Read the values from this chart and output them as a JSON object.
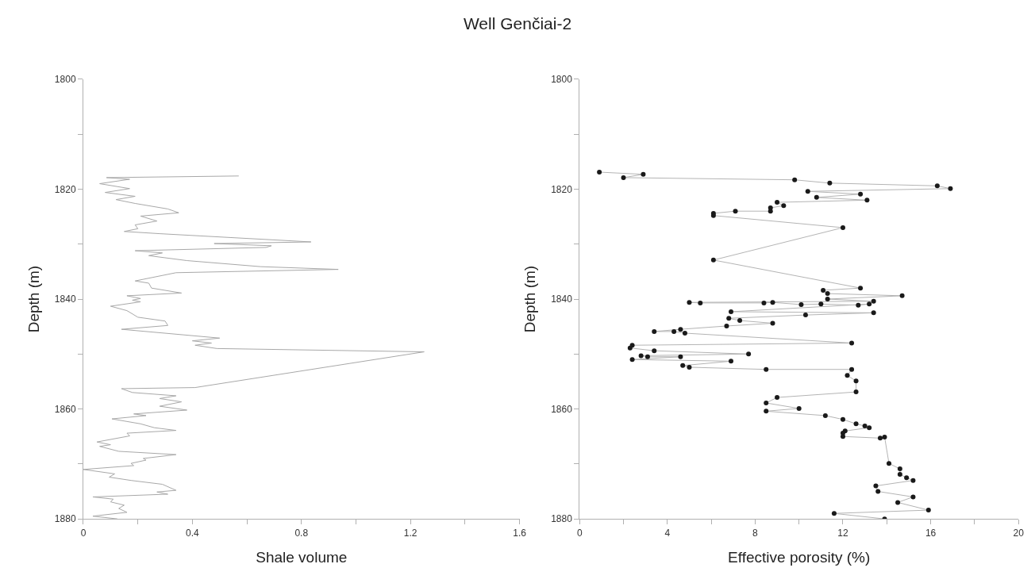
{
  "chart_data": [
    {
      "type": "line",
      "title": "Well Genčiai-2",
      "xlabel": "Shale volume",
      "ylabel": "Depth (m)",
      "marker": "none",
      "line_style": "solid",
      "xlim": [
        0,
        1.6
      ],
      "xticks": [
        0,
        {
          "value": 0.2,
          "label": null
        },
        0.4,
        {
          "value": 0.6,
          "label": null
        },
        0.8,
        {
          "value": 1.0,
          "label": null
        },
        1.2,
        {
          "value": 1.4,
          "label": null
        },
        1.6
      ],
      "ylim": [
        1880,
        1800
      ],
      "yticks": [
        1800,
        {
          "value": 1810,
          "label": null
        },
        1820,
        {
          "value": 1830,
          "label": null
        },
        1840,
        {
          "value": 1850,
          "label": null
        },
        1860,
        {
          "value": 1870,
          "label": null
        },
        1880
      ],
      "series": [
        {
          "color": "#a8a8a8",
          "x": [
            0.57,
            0.085,
            0.17,
            0.06,
            0.17,
            0.08,
            0.19,
            0.12,
            0.19,
            0.31,
            0.35,
            0.21,
            0.27,
            0.19,
            0.2,
            0.15,
            0.28,
            0.835,
            0.48,
            0.69,
            0.67,
            0.19,
            0.29,
            0.24,
            0.38,
            0.65,
            0.935,
            0.34,
            0.19,
            0.24,
            0.25,
            0.36,
            0.16,
            0.21,
            0.18,
            0.21,
            0.1,
            0.16,
            0.2,
            0.3,
            0.31,
            0.14,
            0.5,
            0.4,
            0.47,
            0.41,
            0.49,
            1.25,
            0.41,
            0.14,
            0.18,
            0.34,
            0.28,
            0.36,
            0.28,
            0.38,
            0.185,
            0.23,
            0.105,
            0.21,
            0.26,
            0.34,
            0.16,
            0.17,
            0.05,
            0.1,
            0.06,
            0.13,
            0.34,
            0.22,
            0.23,
            0.175,
            0.185,
            0.0,
            0.115,
            0.095,
            0.175,
            0.29,
            0.34,
            0.27,
            0.31,
            0.035,
            0.11,
            0.1,
            0.15,
            0.13,
            0.16,
            0.035,
            0.125
          ],
          "values": [
            1817.6,
            1817.9,
            1818.2,
            1819,
            1819.9,
            1820.6,
            1821.3,
            1821.9,
            1822.6,
            1823.6,
            1824.3,
            1824.9,
            1825.8,
            1826.5,
            1827.2,
            1827.7,
            1828.1,
            1829.6,
            1829.9,
            1830.3,
            1830.6,
            1831.2,
            1831.6,
            1832.1,
            1833,
            1834.1,
            1834.6,
            1835.2,
            1836.7,
            1837.1,
            1838,
            1838.9,
            1839.4,
            1839.9,
            1840.2,
            1840.5,
            1841.3,
            1842.1,
            1843.3,
            1844,
            1844.8,
            1845.5,
            1847.1,
            1847.6,
            1848,
            1848.4,
            1849,
            1849.6,
            1856.1,
            1856.3,
            1857,
            1857.6,
            1858.1,
            1858.7,
            1859.5,
            1860.2,
            1860.9,
            1861.2,
            1861.8,
            1862.7,
            1863.4,
            1863.9,
            1864.4,
            1864.9,
            1866,
            1866.5,
            1866.8,
            1867.7,
            1868.3,
            1869,
            1869.3,
            1869.9,
            1870.3,
            1871,
            1871.8,
            1872.4,
            1873,
            1873.7,
            1874.8,
            1875.1,
            1875.5,
            1876,
            1876.4,
            1876.9,
            1877.5,
            1878.1,
            1878.8,
            1879.5,
            1880
          ]
        }
      ]
    },
    {
      "type": "line",
      "xlabel": "Effective porosity (%)",
      "ylabel": "Depth (m)",
      "marker": "circle",
      "line_style": "solid",
      "xlim": [
        0,
        20
      ],
      "xticks": [
        0,
        {
          "value": 2,
          "label": null
        },
        4,
        {
          "value": 6,
          "label": null
        },
        8,
        {
          "value": 10,
          "label": null
        },
        12,
        {
          "value": 14,
          "label": null
        },
        16,
        {
          "value": 18,
          "label": null
        },
        20
      ],
      "ylim": [
        1880,
        1800
      ],
      "yticks": [
        1800,
        {
          "value": 1810,
          "label": null
        },
        1820,
        {
          "value": 1830,
          "label": null
        },
        1840,
        {
          "value": 1850,
          "label": null
        },
        1860,
        {
          "value": 1870,
          "label": null
        },
        1880
      ],
      "series": [
        {
          "color": "#b4b4b4",
          "x": [
            0.9,
            2.9,
            2.0,
            9.8,
            11.4,
            16.3,
            16.9,
            10.4,
            12.8,
            10.8,
            13.1,
            9.0,
            9.3,
            8.7,
            8.7,
            7.1,
            6.1,
            6.1,
            12.0,
            6.1,
            12.8,
            11.1,
            11.3,
            14.7,
            11.3,
            13.4,
            5.0,
            5.5,
            8.4,
            8.8,
            10.1,
            11.0,
            12.7,
            13.2,
            6.9,
            13.4,
            10.3,
            6.8,
            7.3,
            8.8,
            6.7,
            4.6,
            3.4,
            4.3,
            4.8,
            12.4,
            2.4,
            2.3,
            3.4,
            7.7,
            2.8,
            3.1,
            4.6,
            2.4,
            6.9,
            4.7,
            5.0,
            8.5,
            12.4,
            12.2,
            12.6,
            12.6,
            9.0,
            8.5,
            10.0,
            8.5,
            11.2,
            12.0,
            12.6,
            13.0,
            13.2,
            12.1,
            12.0,
            12.0,
            13.7,
            13.9,
            14.1,
            14.6,
            14.6,
            14.9,
            15.2,
            13.5,
            13.6,
            15.2,
            14.5,
            15.9,
            11.6,
            13.9
          ],
          "values": [
            1816.9,
            1817.3,
            1817.9,
            1818.3,
            1818.9,
            1819.4,
            1819.9,
            1820.4,
            1820.9,
            1821.5,
            1822,
            1822.4,
            1823,
            1823.4,
            1824,
            1824,
            1824.4,
            1824.8,
            1827,
            1832.9,
            1838,
            1838.4,
            1839,
            1839.4,
            1840,
            1840.4,
            1840.6,
            1840.7,
            1840.7,
            1840.6,
            1841,
            1840.9,
            1841.1,
            1840.9,
            1842.3,
            1842.5,
            1842.9,
            1843.5,
            1843.9,
            1844.4,
            1844.9,
            1845.5,
            1845.9,
            1845.9,
            1846.2,
            1848,
            1848.4,
            1848.9,
            1849.4,
            1850,
            1850.3,
            1850.5,
            1850.5,
            1851,
            1851.3,
            1852.1,
            1852.4,
            1852.8,
            1852.8,
            1853.9,
            1854.9,
            1856.9,
            1857.9,
            1858.9,
            1859.9,
            1860.4,
            1861.2,
            1861.9,
            1862.7,
            1863.1,
            1863.4,
            1864,
            1864.4,
            1865,
            1865.3,
            1865.1,
            1869.9,
            1870.9,
            1871.9,
            1872.5,
            1873,
            1874,
            1875,
            1876,
            1877,
            1878.4,
            1879,
            1880
          ]
        }
      ]
    }
  ]
}
